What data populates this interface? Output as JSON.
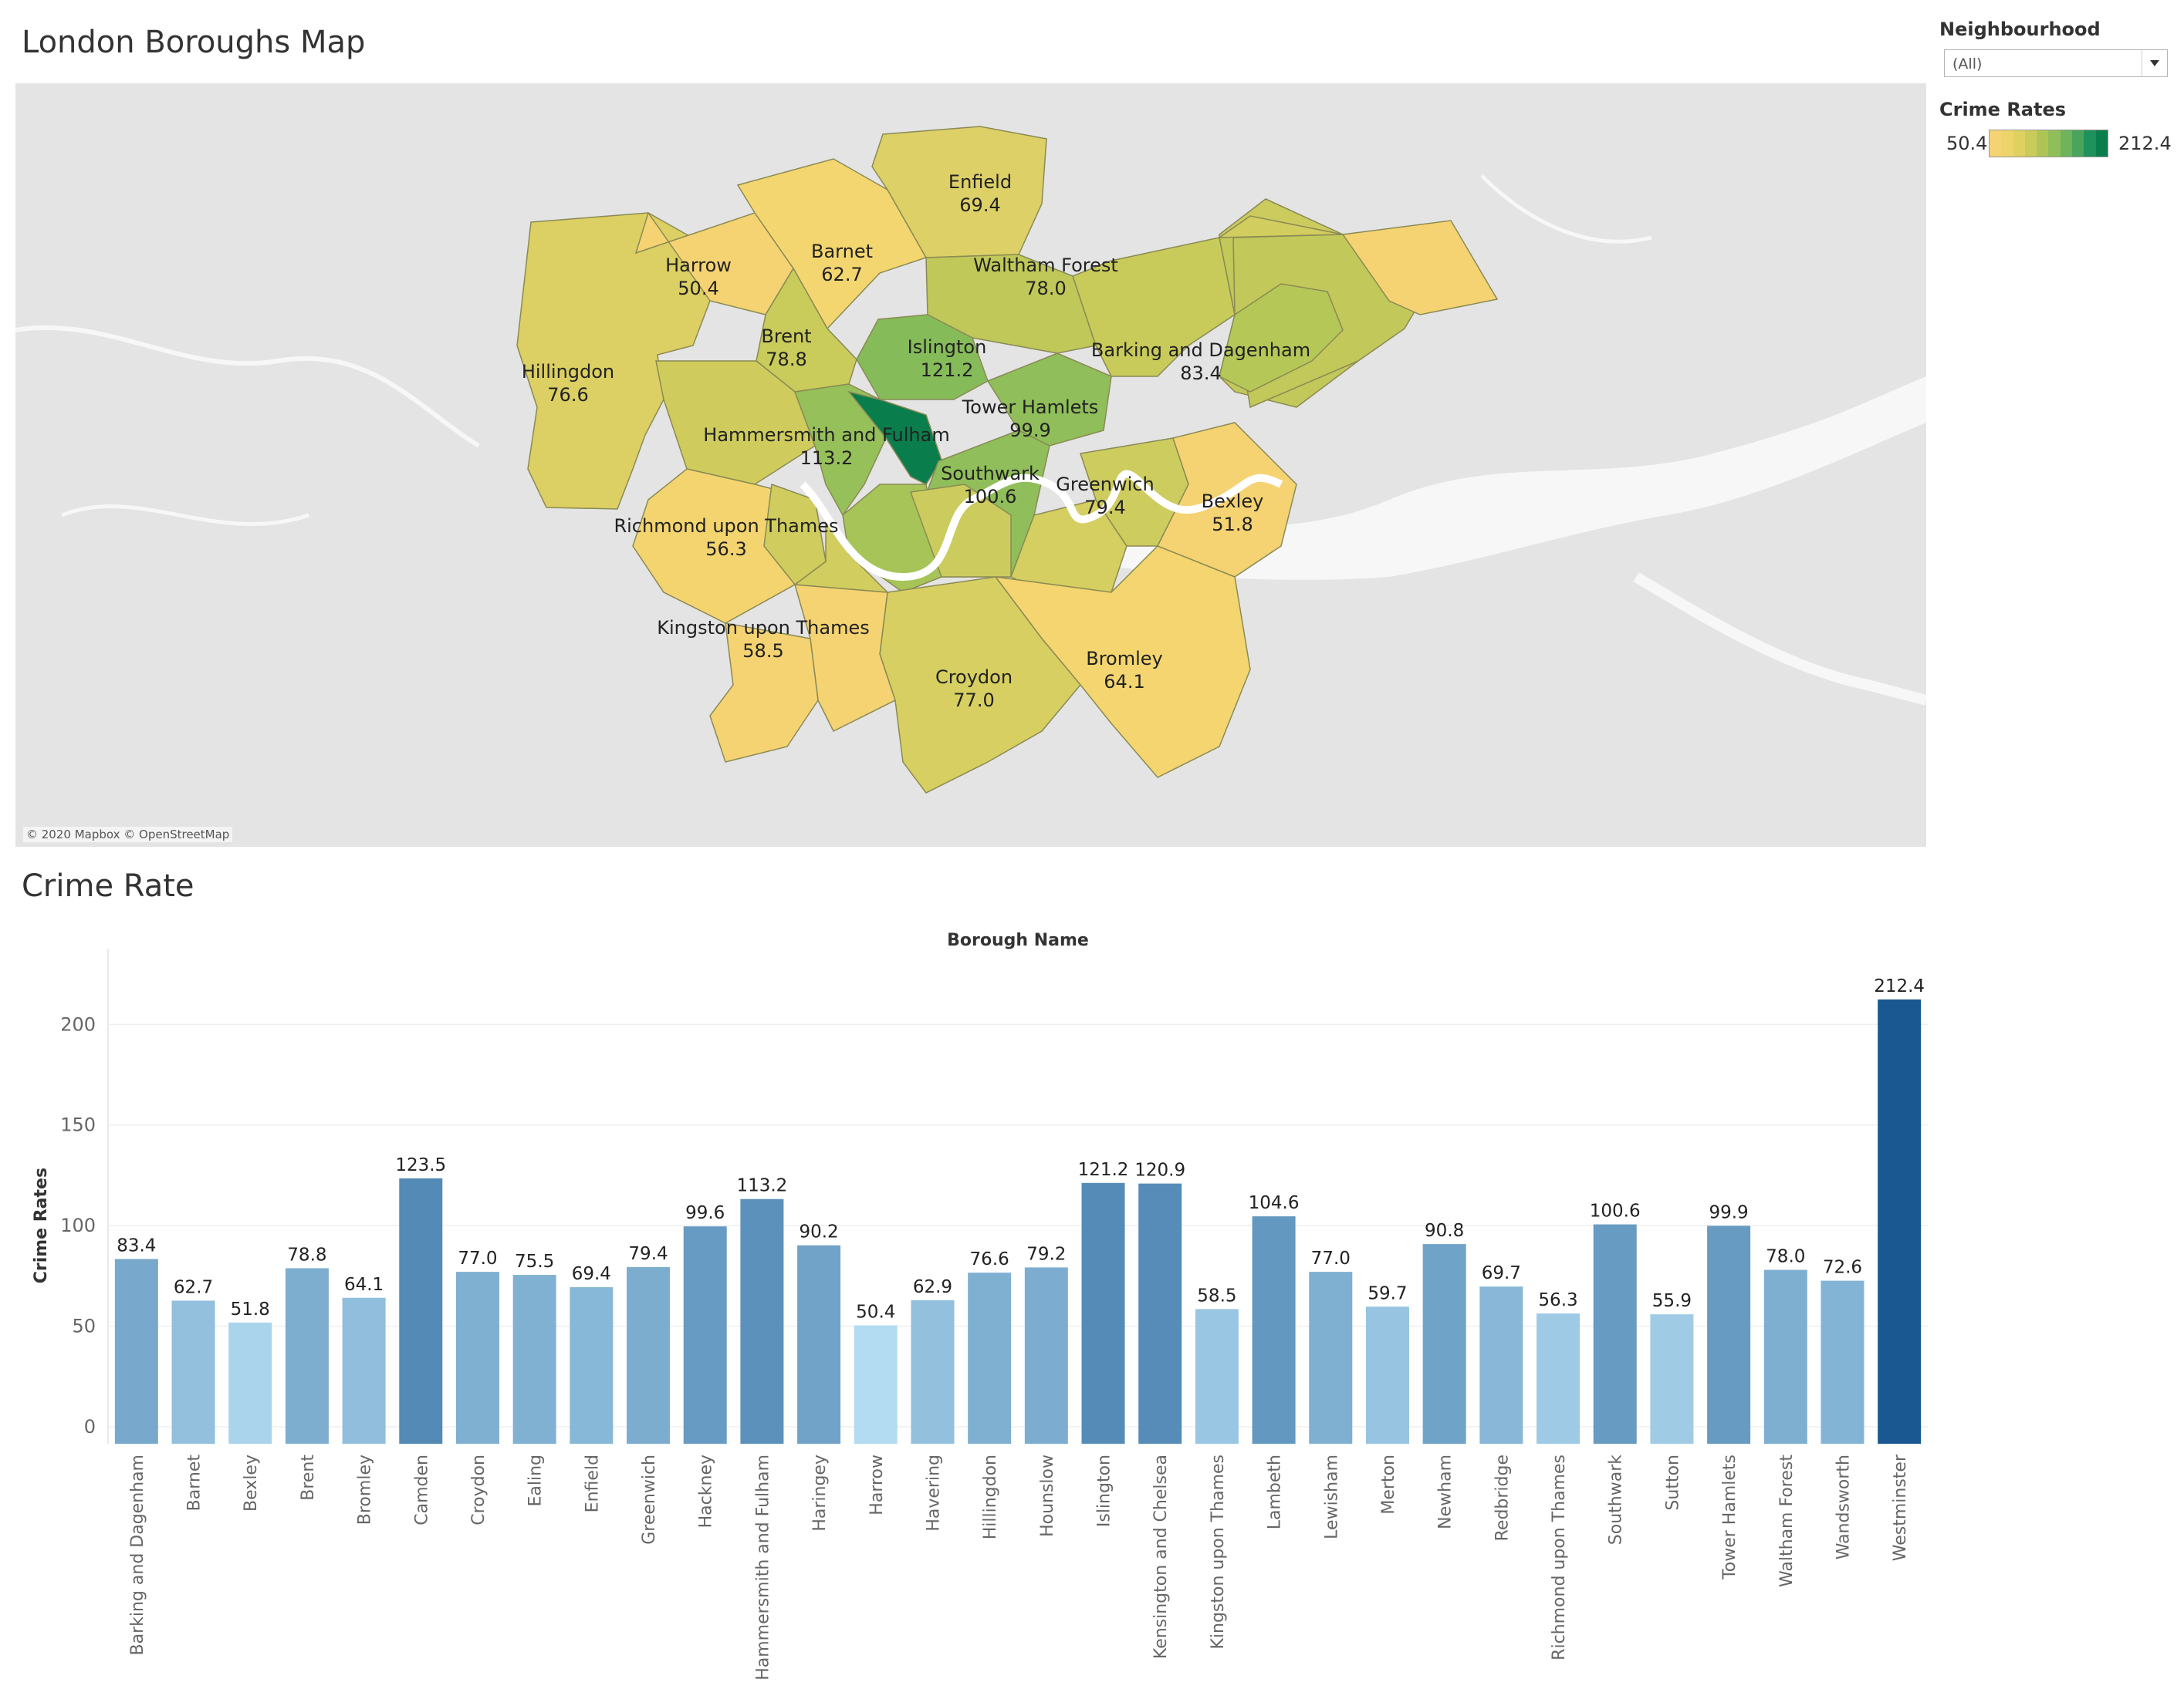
{
  "map": {
    "title": "London Boroughs Map",
    "attribution": "© 2020 Mapbox © OpenStreetMap",
    "labels": [
      {
        "name": "Enfield",
        "value": "69.4"
      },
      {
        "name": "Harrow",
        "value": "50.4"
      },
      {
        "name": "Barnet",
        "value": "62.7"
      },
      {
        "name": "Waltham Forest",
        "value": "78.0"
      },
      {
        "name": "Brent",
        "value": "78.8"
      },
      {
        "name": "Islington",
        "value": "121.2"
      },
      {
        "name": "Hillingdon",
        "value": "76.6"
      },
      {
        "name": "Barking and Dagenham",
        "value": "83.4"
      },
      {
        "name": "Tower Hamlets",
        "value": "99.9"
      },
      {
        "name": "Hammersmith and Fulham",
        "value": "113.2"
      },
      {
        "name": "Southwark",
        "value": "100.6"
      },
      {
        "name": "Greenwich",
        "value": "79.4"
      },
      {
        "name": "Bexley",
        "value": "51.8"
      },
      {
        "name": "Richmond upon Thames",
        "value": "56.3"
      },
      {
        "name": "Kingston upon Thames",
        "value": "58.5"
      },
      {
        "name": "Croydon",
        "value": "77.0"
      },
      {
        "name": "Bromley",
        "value": "64.1"
      }
    ]
  },
  "filter": {
    "title": "Neighbourhood",
    "value": "(All)",
    "arrow_icon": "triangle-down"
  },
  "legend": {
    "title": "Crime Rates",
    "min": "50.4",
    "max": "212.4",
    "colors": [
      "#f5d372",
      "#edd46a",
      "#dfd160",
      "#c9cb5a",
      "#aec556",
      "#90be58",
      "#6fb35a",
      "#4aa45c",
      "#1f915a",
      "#0a7d4c"
    ]
  },
  "colors": {
    "map_background": "#e6e6e6",
    "water": "#ffffff"
  },
  "chart_data": {
    "type": "bar",
    "title": "Crime Rate",
    "xlabel": "Borough Name",
    "ylabel": "Crime Rates",
    "ylim": [
      0,
      230
    ],
    "yticks": [
      0,
      50,
      100,
      150,
      200
    ],
    "grid": true,
    "color_ramp": [
      "#b3dcf2",
      "#195891"
    ],
    "categories": [
      "Barking and Dagenham",
      "Barnet",
      "Bexley",
      "Brent",
      "Bromley",
      "Camden",
      "Croydon",
      "Ealing",
      "Enfield",
      "Greenwich",
      "Hackney",
      "Hammersmith and Fulham",
      "Haringey",
      "Harrow",
      "Havering",
      "Hillingdon",
      "Hounslow",
      "Islington",
      "Kensington and Chelsea",
      "Kingston upon Thames",
      "Lambeth",
      "Lewisham",
      "Merton",
      "Newham",
      "Redbridge",
      "Richmond upon Thames",
      "Southwark",
      "Sutton",
      "Tower Hamlets",
      "Waltham Forest",
      "Wandsworth",
      "Westminster"
    ],
    "values": [
      83.4,
      62.7,
      51.8,
      78.8,
      64.1,
      123.5,
      77.0,
      75.5,
      69.4,
      79.4,
      99.6,
      113.2,
      90.2,
      50.4,
      62.9,
      76.6,
      79.2,
      121.2,
      120.9,
      58.5,
      104.6,
      77.0,
      59.7,
      90.8,
      69.7,
      56.3,
      100.6,
      55.9,
      99.9,
      78.0,
      72.6,
      212.4
    ]
  }
}
